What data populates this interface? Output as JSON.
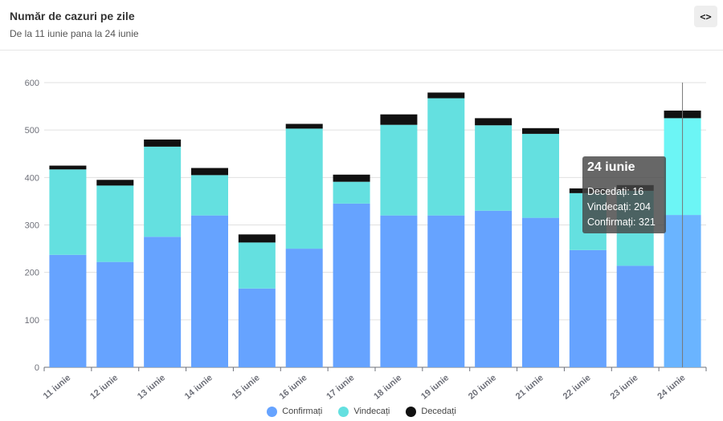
{
  "header": {
    "title": "Număr de cazuri pe zile",
    "subtitle": "De la 11 iunie pana la 24 iunie",
    "code_button_label": "<>"
  },
  "tooltip": {
    "title": "24 iunie",
    "rows": [
      {
        "label": "Decedați",
        "value": "16"
      },
      {
        "label": "Vindecați",
        "value": "204"
      },
      {
        "label": "Confirmați",
        "value": "321"
      }
    ]
  },
  "colors": {
    "confirmati": "#66A3FF",
    "vindecati": "#64E0E0",
    "decedati": "#111111",
    "confirmati_highlight": "#6AB4FF",
    "vindecati_highlight": "#6CF5F5"
  },
  "chart_data": {
    "type": "bar",
    "stacked": true,
    "title": "Număr de cazuri pe zile",
    "subtitle": "De la 11 iunie pana la 24 iunie",
    "xlabel": "",
    "ylabel": "",
    "ylim": [
      0,
      600
    ],
    "yticks": [
      0,
      100,
      200,
      300,
      400,
      500,
      600
    ],
    "grid": true,
    "legend_position": "bottom-center",
    "highlighted_category": "24 iunie",
    "categories": [
      "11 iunie",
      "12 iunie",
      "13 iunie",
      "14 iunie",
      "15 iunie",
      "16 iunie",
      "17 iunie",
      "18 iunie",
      "19 iunie",
      "20 iunie",
      "21 iunie",
      "22 iunie",
      "23 iunie",
      "24 iunie"
    ],
    "series": [
      {
        "name": "Confirmați",
        "values": [
          237,
          222,
          275,
          320,
          166,
          250,
          345,
          320,
          320,
          330,
          315,
          247,
          214,
          321
        ]
      },
      {
        "name": "Vindecați",
        "values": [
          180,
          161,
          190,
          85,
          97,
          253,
          46,
          191,
          247,
          180,
          177,
          120,
          158,
          204
        ]
      },
      {
        "name": "Decedați",
        "values": [
          8,
          12,
          15,
          15,
          17,
          10,
          15,
          22,
          12,
          15,
          12,
          10,
          12,
          16
        ]
      }
    ]
  }
}
